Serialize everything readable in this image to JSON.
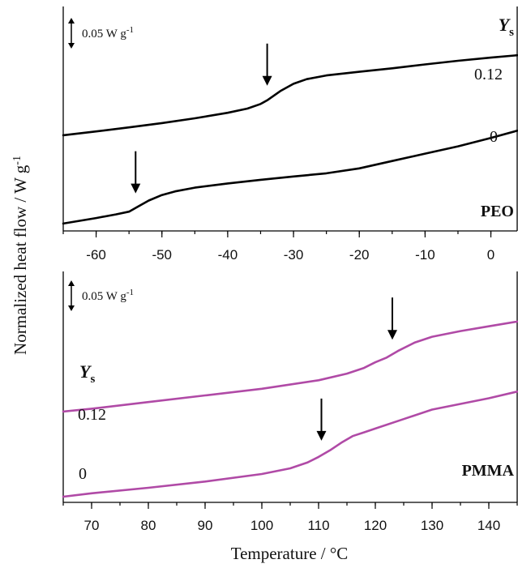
{
  "colors": {
    "peo": "#000000",
    "pmma": "#b04aa6"
  },
  "ylabel": "Normalized heat flow / W g",
  "ylabel_sup": "-1",
  "xlabel": "Temperature / °C",
  "chart_data": [
    {
      "type": "line",
      "title": "PEO",
      "legend_title_main": "Y",
      "legend_title_sub": "s",
      "scale_bar_text": "0.05 W g",
      "scale_bar_sup": "-1",
      "xlim": [
        -65,
        4
      ],
      "xticks": [
        -60,
        -50,
        -40,
        -30,
        -20,
        -10,
        0
      ],
      "xtick_labels": [
        "-60",
        "-50",
        "-40",
        "-30",
        "-20",
        "-10",
        "0"
      ],
      "grid": false,
      "series": [
        {
          "name": "0.12",
          "x": [
            -65,
            -60,
            -55,
            -50,
            -45,
            -40,
            -37,
            -35,
            -34,
            -32,
            -30,
            -28,
            -25,
            -20,
            -15,
            -10,
            -5,
            0,
            4
          ],
          "y": [
            0.3,
            0.321,
            0.343,
            0.366,
            0.392,
            0.422,
            0.445,
            0.47,
            0.49,
            0.54,
            0.58,
            0.605,
            0.625,
            0.645,
            0.664,
            0.685,
            0.705,
            0.722,
            0.735
          ],
          "tg": -34
        },
        {
          "name": "0",
          "x": [
            -65,
            -60,
            -57,
            -55,
            -54,
            -52,
            -50,
            -48,
            -45,
            -40,
            -35,
            -30,
            -25,
            -20,
            -15,
            -10,
            -5,
            0,
            4
          ],
          "y": [
            -0.18,
            -0.15,
            -0.13,
            -0.115,
            -0.095,
            -0.055,
            -0.025,
            -0.005,
            0.015,
            0.038,
            0.058,
            0.076,
            0.093,
            0.12,
            0.16,
            0.2,
            0.24,
            0.285,
            0.325
          ],
          "tg": -54
        }
      ]
    },
    {
      "type": "line",
      "title": "PMMA",
      "legend_title_main": "Y",
      "legend_title_sub": "s",
      "scale_bar_text": "0.05 W g",
      "scale_bar_sup": "-1",
      "xlim": [
        65,
        145
      ],
      "xticks": [
        70,
        80,
        90,
        100,
        110,
        120,
        130,
        140
      ],
      "xtick_labels": [
        "70",
        "80",
        "90",
        "100",
        "110",
        "120",
        "130",
        "140"
      ],
      "grid": false,
      "series": [
        {
          "name": "0.12",
          "x": [
            65,
            70,
            80,
            90,
            100,
            110,
            115,
            118,
            120,
            122,
            124,
            127,
            130,
            135,
            140,
            145
          ],
          "y": [
            0.26,
            0.275,
            0.31,
            0.345,
            0.38,
            0.425,
            0.46,
            0.49,
            0.52,
            0.545,
            0.58,
            0.625,
            0.655,
            0.685,
            0.71,
            0.735
          ],
          "tg": 123
        },
        {
          "name": "0",
          "x": [
            65,
            70,
            80,
            90,
            100,
            105,
            108,
            110,
            112,
            114,
            116,
            118,
            120,
            125,
            130,
            135,
            140,
            145
          ],
          "y": [
            -0.19,
            -0.172,
            -0.143,
            -0.11,
            -0.07,
            -0.04,
            -0.01,
            0.02,
            0.055,
            0.095,
            0.13,
            0.15,
            0.17,
            0.22,
            0.27,
            0.3,
            0.33,
            0.365
          ],
          "tg": 110.5
        }
      ]
    }
  ]
}
